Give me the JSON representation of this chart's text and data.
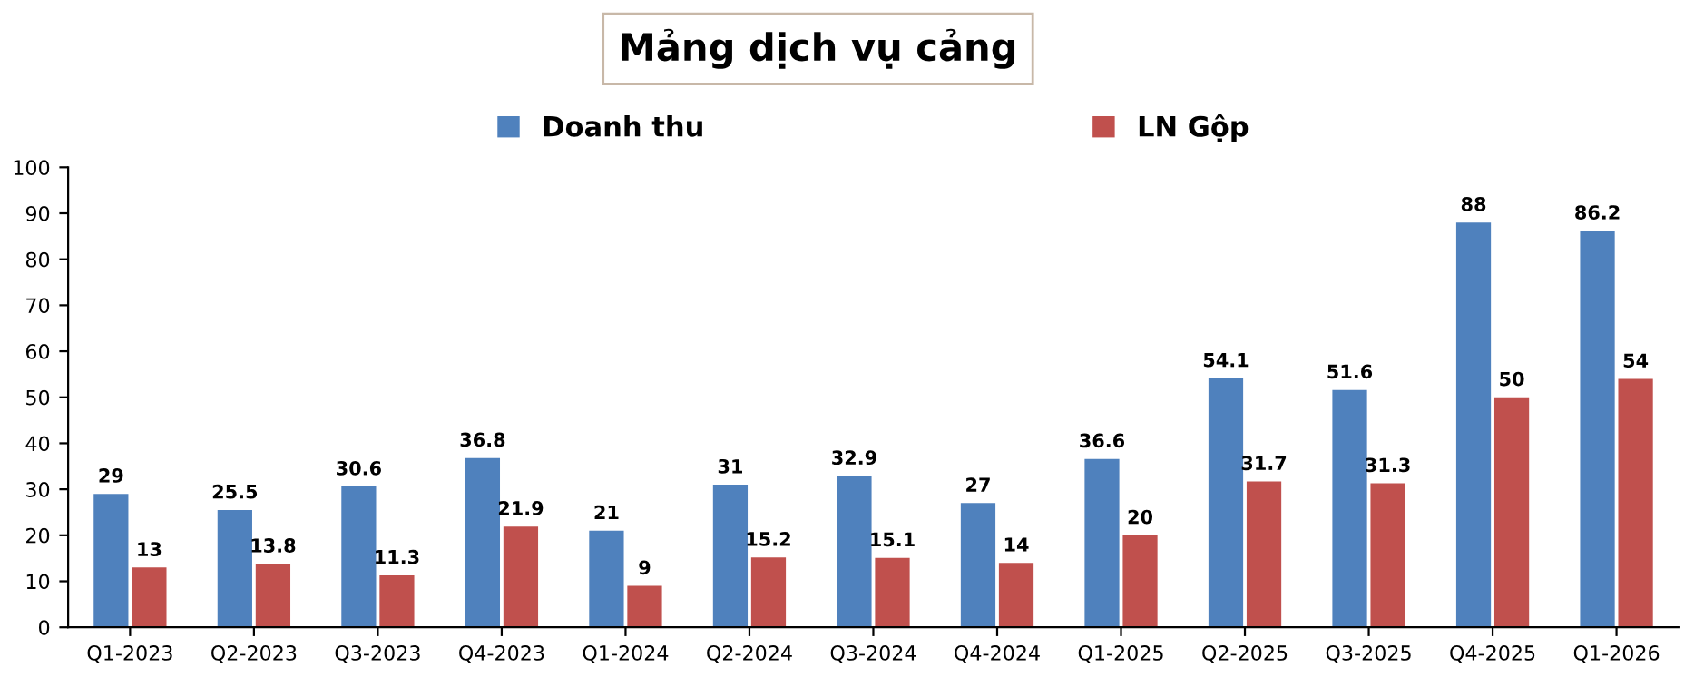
{
  "chart_data": {
    "type": "bar",
    "title": "Mảng dịch vụ cảng",
    "categories": [
      "Q1-2023",
      "Q2-2023",
      "Q3-2023",
      "Q4-2023",
      "Q1-2024",
      "Q2-2024",
      "Q3-2024",
      "Q4-2024",
      "Q1-2025",
      "Q2-2025",
      "Q3-2025",
      "Q4-2025",
      "Q1-2026"
    ],
    "series": [
      {
        "name": "Doanh thu",
        "color": "#4f81bd",
        "values": [
          29,
          25.5,
          30.6,
          36.8,
          21,
          31,
          32.9,
          27,
          36.6,
          54.1,
          51.6,
          88,
          86.2
        ]
      },
      {
        "name": "LN Gộp",
        "color": "#c0504d",
        "values": [
          13,
          13.8,
          11.3,
          21.9,
          9,
          15.2,
          15.1,
          14,
          20,
          31.7,
          31.3,
          50,
          54
        ]
      }
    ],
    "ylim": [
      0,
      100
    ],
    "yticks": [
      0,
      10,
      20,
      30,
      40,
      50,
      60,
      70,
      80,
      90,
      100
    ],
    "data_labels": true,
    "legend": "top",
    "grid": false
  }
}
